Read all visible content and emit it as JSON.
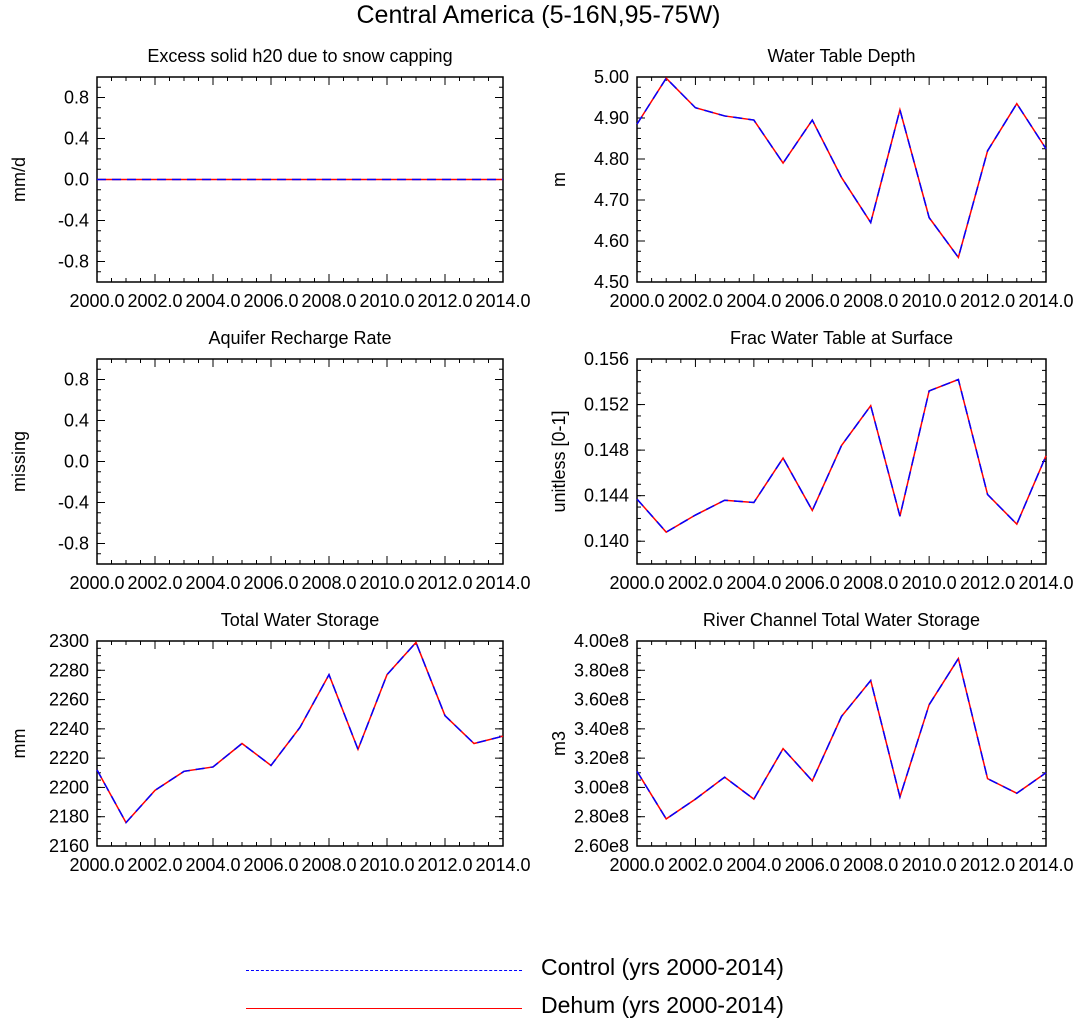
{
  "title": "Central America (5-16N,95-75W)",
  "colors": {
    "control": "#0000ff",
    "dehum": "#ff0000",
    "axis": "#000000"
  },
  "legend": [
    {
      "label": "Control (yrs 2000-2014)",
      "color": "#0000ff",
      "style": "dashed"
    },
    {
      "label": "Dehum (yrs 2000-2014)",
      "color": "#ff0000",
      "style": "solid"
    }
  ],
  "chart_data": [
    {
      "type": "line",
      "title": "Excess solid h20 due to snow capping",
      "xlabel": "",
      "ylabel": "mm/d",
      "xlim": [
        2000,
        2014
      ],
      "xticks": [
        2000,
        2002,
        2004,
        2006,
        2008,
        2010,
        2012,
        2014
      ],
      "xticklabels": [
        "2000.0",
        "2002.0",
        "2004.0",
        "2006.0",
        "2008.0",
        "2010.0",
        "2012.0",
        "2014.0"
      ],
      "ylim": [
        -1.0,
        1.0
      ],
      "yticks": [
        -0.8,
        -0.4,
        0.0,
        0.4,
        0.8
      ],
      "yticklabels": [
        "-0.8",
        "-0.4",
        "0.0",
        "0.4",
        "0.8"
      ],
      "x": [
        2000,
        2001,
        2002,
        2003,
        2004,
        2005,
        2006,
        2007,
        2008,
        2009,
        2010,
        2011,
        2012,
        2013,
        2014
      ],
      "series": [
        {
          "name": "Control (yrs 2000-2014)",
          "values": [
            0,
            0,
            0,
            0,
            0,
            0,
            0,
            0,
            0,
            0,
            0,
            0,
            0,
            0,
            0
          ]
        },
        {
          "name": "Dehum (yrs 2000-2014)",
          "values": [
            0,
            0,
            0,
            0,
            0,
            0,
            0,
            0,
            0,
            0,
            0,
            0,
            0,
            0,
            0
          ]
        }
      ]
    },
    {
      "type": "line",
      "title": "Water Table Depth",
      "xlabel": "",
      "ylabel": "m",
      "xlim": [
        2000,
        2014
      ],
      "xticks": [
        2000,
        2002,
        2004,
        2006,
        2008,
        2010,
        2012,
        2014
      ],
      "xticklabels": [
        "2000.0",
        "2002.0",
        "2004.0",
        "2006.0",
        "2008.0",
        "2010.0",
        "2012.0",
        "2014.0"
      ],
      "ylim": [
        4.5,
        5.0
      ],
      "yticks": [
        4.5,
        4.6,
        4.7,
        4.8,
        4.9,
        5.0
      ],
      "yticklabels": [
        "4.50",
        "4.60",
        "4.70",
        "4.80",
        "4.90",
        "5.00"
      ],
      "x": [
        2000,
        2001,
        2002,
        2003,
        2004,
        2005,
        2006,
        2007,
        2008,
        2009,
        2010,
        2011,
        2012,
        2013,
        2014
      ],
      "series": [
        {
          "name": "Control (yrs 2000-2014)",
          "values": [
            4.885,
            4.997,
            4.925,
            4.905,
            4.895,
            4.79,
            4.895,
            4.755,
            4.645,
            4.92,
            4.657,
            4.56,
            4.82,
            4.935,
            4.825
          ]
        },
        {
          "name": "Dehum (yrs 2000-2014)",
          "values": [
            4.885,
            4.997,
            4.925,
            4.905,
            4.895,
            4.79,
            4.895,
            4.755,
            4.645,
            4.92,
            4.657,
            4.56,
            4.82,
            4.935,
            4.825
          ]
        }
      ]
    },
    {
      "type": "line",
      "title": "Aquifer Recharge Rate",
      "xlabel": "",
      "ylabel": "missing",
      "xlim": [
        2000,
        2014
      ],
      "xticks": [
        2000,
        2002,
        2004,
        2006,
        2008,
        2010,
        2012,
        2014
      ],
      "xticklabels": [
        "2000.0",
        "2002.0",
        "2004.0",
        "2006.0",
        "2008.0",
        "2010.0",
        "2012.0",
        "2014.0"
      ],
      "ylim": [
        -1.0,
        1.0
      ],
      "yticks": [
        -0.8,
        -0.4,
        0.0,
        0.4,
        0.8
      ],
      "yticklabels": [
        "-0.8",
        "-0.4",
        "0.0",
        "0.4",
        "0.8"
      ],
      "x": [],
      "series": []
    },
    {
      "type": "line",
      "title": "Frac Water Table at Surface",
      "xlabel": "",
      "ylabel": "unitless [0-1]",
      "xlim": [
        2000,
        2014
      ],
      "xticks": [
        2000,
        2002,
        2004,
        2006,
        2008,
        2010,
        2012,
        2014
      ],
      "xticklabels": [
        "2000.0",
        "2002.0",
        "2004.0",
        "2006.0",
        "2008.0",
        "2010.0",
        "2012.0",
        "2014.0"
      ],
      "ylim": [
        0.138,
        0.156
      ],
      "yticks": [
        0.14,
        0.144,
        0.148,
        0.152,
        0.156
      ],
      "yticklabels": [
        "0.140",
        "0.144",
        "0.148",
        "0.152",
        "0.156"
      ],
      "x": [
        2000,
        2001,
        2002,
        2003,
        2004,
        2005,
        2006,
        2007,
        2008,
        2009,
        2010,
        2011,
        2012,
        2013,
        2014
      ],
      "series": [
        {
          "name": "Control (yrs 2000-2014)",
          "values": [
            0.1437,
            0.1408,
            0.1423,
            0.1436,
            0.1434,
            0.1473,
            0.1427,
            0.1484,
            0.1519,
            0.1422,
            0.1532,
            0.1542,
            0.1441,
            0.1415,
            0.1475
          ]
        },
        {
          "name": "Dehum (yrs 2000-2014)",
          "values": [
            0.1437,
            0.1408,
            0.1423,
            0.1436,
            0.1434,
            0.1473,
            0.1427,
            0.1484,
            0.1519,
            0.1422,
            0.1532,
            0.1542,
            0.1441,
            0.1415,
            0.1475
          ]
        }
      ]
    },
    {
      "type": "line",
      "title": "Total Water Storage",
      "xlabel": "",
      "ylabel": "mm",
      "xlim": [
        2000,
        2014
      ],
      "xticks": [
        2000,
        2002,
        2004,
        2006,
        2008,
        2010,
        2012,
        2014
      ],
      "xticklabels": [
        "2000.0",
        "2002.0",
        "2004.0",
        "2006.0",
        "2008.0",
        "2010.0",
        "2012.0",
        "2014.0"
      ],
      "ylim": [
        2160,
        2300
      ],
      "yticks": [
        2160,
        2180,
        2200,
        2220,
        2240,
        2260,
        2280,
        2300
      ],
      "yticklabels": [
        "2160",
        "2180",
        "2200",
        "2220",
        "2240",
        "2260",
        "2280",
        "2300"
      ],
      "x": [
        2000,
        2001,
        2002,
        2003,
        2004,
        2005,
        2006,
        2007,
        2008,
        2009,
        2010,
        2011,
        2012,
        2013,
        2014
      ],
      "series": [
        {
          "name": "Control (yrs 2000-2014)",
          "values": [
            2212,
            2176,
            2198,
            2211,
            2214,
            2230,
            2215,
            2241,
            2277,
            2226,
            2277,
            2299,
            2249,
            2230,
            2235
          ]
        },
        {
          "name": "Dehum (yrs 2000-2014)",
          "values": [
            2212,
            2176,
            2198,
            2211,
            2214,
            2230,
            2215,
            2241,
            2277,
            2226,
            2277,
            2299,
            2249,
            2230,
            2235
          ]
        }
      ]
    },
    {
      "type": "line",
      "title": "River Channel Total Water Storage",
      "xlabel": "",
      "ylabel": "m3",
      "xlim": [
        2000,
        2014
      ],
      "xticks": [
        2000,
        2002,
        2004,
        2006,
        2008,
        2010,
        2012,
        2014
      ],
      "xticklabels": [
        "2000.0",
        "2002.0",
        "2004.0",
        "2006.0",
        "2008.0",
        "2010.0",
        "2012.0",
        "2014.0"
      ],
      "ylim": [
        260000000,
        400000000
      ],
      "yticks": [
        260000000,
        280000000,
        300000000,
        320000000,
        340000000,
        360000000,
        380000000,
        400000000
      ],
      "yticklabels": [
        "2.60e8",
        "2.80e8",
        "3.00e8",
        "3.20e8",
        "3.40e8",
        "3.60e8",
        "3.80e8",
        "4.00e8"
      ],
      "x": [
        2000,
        2001,
        2002,
        2003,
        2004,
        2005,
        2006,
        2007,
        2008,
        2009,
        2010,
        2011,
        2012,
        2013,
        2014
      ],
      "series": [
        {
          "name": "Control (yrs 2000-2014)",
          "values": [
            311000000,
            278500000,
            292000000,
            307000000,
            292000000,
            326500000,
            304500000,
            348500000,
            373000000,
            293500000,
            356500000,
            388000000,
            306000000,
            296000000,
            310000000
          ]
        },
        {
          "name": "Dehum (yrs 2000-2014)",
          "values": [
            311000000,
            278500000,
            292000000,
            307000000,
            292000000,
            326500000,
            304500000,
            348500000,
            373000000,
            293500000,
            356500000,
            388000000,
            306000000,
            296000000,
            310000000
          ]
        }
      ]
    }
  ]
}
